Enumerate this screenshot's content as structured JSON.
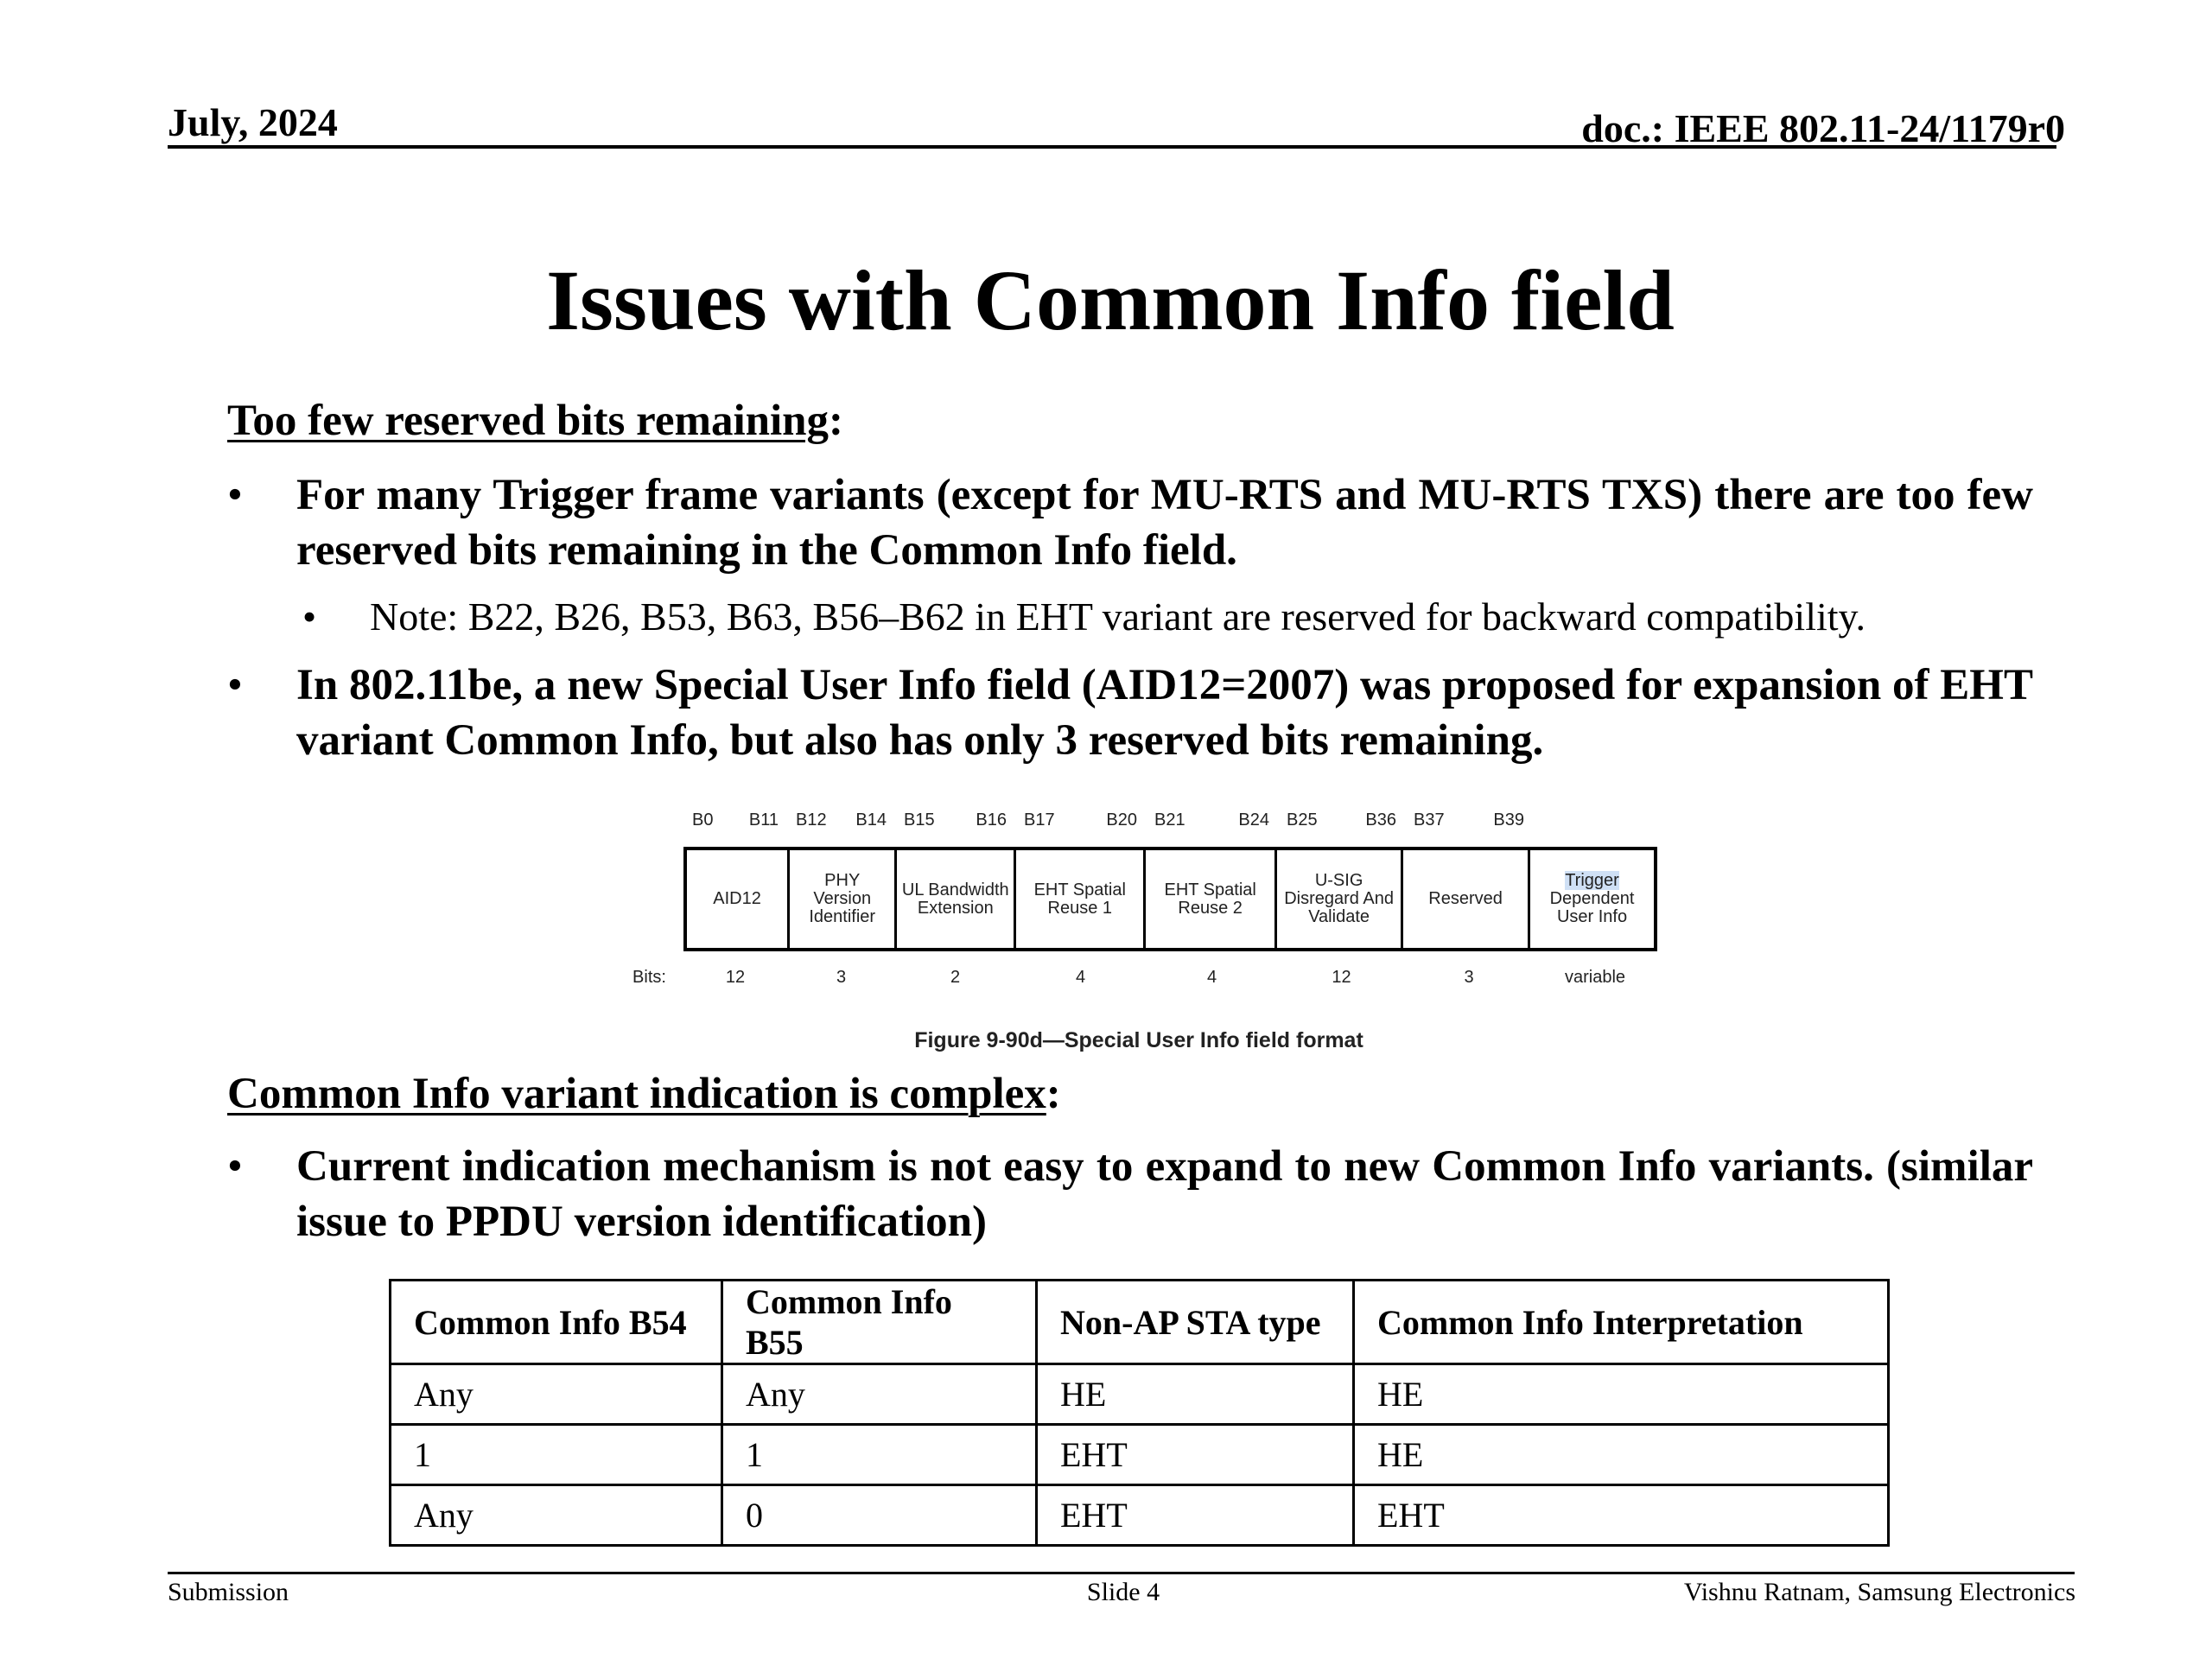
{
  "header": {
    "date": "July, 2024",
    "doc": "doc.: IEEE 802.11-24/1179r0"
  },
  "title": "Issues with Common Info field",
  "section1": {
    "heading": "Too few reserved bits remaining",
    "colon": ":",
    "bullets": [
      {
        "text": "For many Trigger frame variants (except for MU-RTS and MU-RTS TXS) there are too few reserved bits remaining in the Common Info field."
      },
      {
        "text": "In 802.11be, a new Special User Info field (AID12=2007) was proposed for expansion of EHT variant Common Info, but also has only 3 reserved bits remaining."
      }
    ],
    "subbullet": "Note: B22, B26, B53, B63, B56–B62 in EHT variant are reserved for backward compatibility."
  },
  "figure": {
    "bits_label": "Bits:",
    "fields": [
      {
        "start": "B0",
        "end": "B11",
        "name": "AID12",
        "bits": "12"
      },
      {
        "start": "B12",
        "end": "B14",
        "name": "PHY Version Identifier",
        "bits": "3"
      },
      {
        "start": "B15",
        "end": "B16",
        "name": "UL Bandwidth Extension",
        "bits": "2"
      },
      {
        "start": "B17",
        "end": "B20",
        "name": "EHT Spatial Reuse 1",
        "bits": "4"
      },
      {
        "start": "B21",
        "end": "B24",
        "name": "EHT Spatial Reuse 2",
        "bits": "4"
      },
      {
        "start": "B25",
        "end": "B36",
        "name": "U-SIG Disregard And Validate",
        "bits": "12"
      },
      {
        "start": "B37",
        "end": "B39",
        "name": "Reserved",
        "bits": "3"
      },
      {
        "start": "",
        "end": "",
        "name_hl": "Trigger",
        "name": "Dependent User Info",
        "bits": "variable"
      }
    ],
    "caption": "Figure 9-90d—Special User Info field format"
  },
  "section2": {
    "heading": "Common Info variant indication is complex",
    "colon": ":",
    "bullet": "Current indication mechanism is not easy to expand to new Common Info variants. (similar issue to PPDU version identification)"
  },
  "table": {
    "headers": [
      "Common Info B54",
      "Common Info B55",
      "Non-AP STA type",
      "Common Info Interpretation"
    ],
    "rows": [
      [
        "Any",
        "Any",
        "HE",
        "HE"
      ],
      [
        "1",
        "1",
        "EHT",
        "HE"
      ],
      [
        "Any",
        "0",
        "EHT",
        "EHT"
      ]
    ]
  },
  "footer": {
    "left": "Submission",
    "center": "Slide 4",
    "right": "Vishnu Ratnam, Samsung Electronics"
  }
}
